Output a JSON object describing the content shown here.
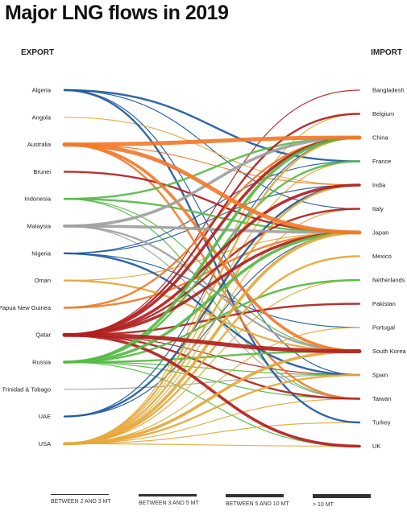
{
  "title": "Major LNG flows in 2019",
  "export_label": "EXPORT",
  "import_label": "IMPORT",
  "colors": {
    "orange": "#f27a2a",
    "blue": "#1f5aa0",
    "grey": "#a0a0a0",
    "green": "#55bb44",
    "red": "#b21f1f",
    "gold": "#e5a83a"
  },
  "exporters": [
    {
      "name": "Algeria",
      "color": "#1f5aa0"
    },
    {
      "name": "Angola",
      "color": "#e5a83a"
    },
    {
      "name": "Australia",
      "color": "#f27a2a"
    },
    {
      "name": "Brunei",
      "color": "#b21f1f"
    },
    {
      "name": "Indonesia",
      "color": "#55bb44"
    },
    {
      "name": "Malaysia",
      "color": "#a0a0a0"
    },
    {
      "name": "Nigeria",
      "color": "#1f5aa0"
    },
    {
      "name": "Oman",
      "color": "#e5a83a"
    },
    {
      "name": "Papua New Guinea",
      "color": "#f27a2a"
    },
    {
      "name": "Qatar",
      "color": "#b21f1f"
    },
    {
      "name": "Russia",
      "color": "#55bb44"
    },
    {
      "name": "Trinidad & Tobago",
      "color": "#a0a0a0"
    },
    {
      "name": "UAE",
      "color": "#1f5aa0"
    },
    {
      "name": "USA",
      "color": "#e5a83a"
    }
  ],
  "importers": [
    "Bangladesh",
    "Belgium",
    "China",
    "France",
    "India",
    "Italy",
    "Japan",
    "Mexico",
    "Netherlands",
    "Pakistan",
    "Portugal",
    "South Korea",
    "Spain",
    "Taiwan",
    "Turkey",
    "UK"
  ],
  "flows": [
    {
      "from": "Algeria",
      "to": "France",
      "band": 2
    },
    {
      "from": "Algeria",
      "to": "Italy",
      "band": 1
    },
    {
      "from": "Algeria",
      "to": "Turkey",
      "band": 2
    },
    {
      "from": "Algeria",
      "to": "Spain",
      "band": 1
    },
    {
      "from": "Angola",
      "to": "India",
      "band": 1
    },
    {
      "from": "Australia",
      "to": "China",
      "band": 4
    },
    {
      "from": "Australia",
      "to": "Japan",
      "band": 4
    },
    {
      "from": "Australia",
      "to": "South Korea",
      "band": 3
    },
    {
      "from": "Australia",
      "to": "Taiwan",
      "band": 2
    },
    {
      "from": "Australia",
      "to": "India",
      "band": 1
    },
    {
      "from": "Brunei",
      "to": "Japan",
      "band": 2
    },
    {
      "from": "Indonesia",
      "to": "China",
      "band": 2
    },
    {
      "from": "Indonesia",
      "to": "Japan",
      "band": 2
    },
    {
      "from": "Indonesia",
      "to": "South Korea",
      "band": 1
    },
    {
      "from": "Indonesia",
      "to": "Taiwan",
      "band": 1
    },
    {
      "from": "Malaysia",
      "to": "China",
      "band": 3
    },
    {
      "from": "Malaysia",
      "to": "Japan",
      "band": 3
    },
    {
      "from": "Malaysia",
      "to": "South Korea",
      "band": 2
    },
    {
      "from": "Malaysia",
      "to": "Taiwan",
      "band": 1
    },
    {
      "from": "Nigeria",
      "to": "India",
      "band": 1
    },
    {
      "from": "Nigeria",
      "to": "Spain",
      "band": 2
    },
    {
      "from": "Nigeria",
      "to": "France",
      "band": 1
    },
    {
      "from": "Nigeria",
      "to": "Portugal",
      "band": 1
    },
    {
      "from": "Oman",
      "to": "South Korea",
      "band": 2
    },
    {
      "from": "Oman",
      "to": "Japan",
      "band": 1
    },
    {
      "from": "Papua New Guinea",
      "to": "Japan",
      "band": 2
    },
    {
      "from": "Papua New Guinea",
      "to": "China",
      "band": 2
    },
    {
      "from": "Qatar",
      "to": "Bangladesh",
      "band": 1
    },
    {
      "from": "Qatar",
      "to": "Belgium",
      "band": 2
    },
    {
      "from": "Qatar",
      "to": "China",
      "band": 3
    },
    {
      "from": "Qatar",
      "to": "India",
      "band": 3
    },
    {
      "from": "Qatar",
      "to": "Italy",
      "band": 2
    },
    {
      "from": "Qatar",
      "to": "Japan",
      "band": 3
    },
    {
      "from": "Qatar",
      "to": "Pakistan",
      "band": 2
    },
    {
      "from": "Qatar",
      "to": "South Korea",
      "band": 4
    },
    {
      "from": "Qatar",
      "to": "Taiwan",
      "band": 2
    },
    {
      "from": "Qatar",
      "to": "UK",
      "band": 3
    },
    {
      "from": "Qatar",
      "to": "Spain",
      "band": 1
    },
    {
      "from": "Russia",
      "to": "China",
      "band": 3
    },
    {
      "from": "Russia",
      "to": "Japan",
      "band": 3
    },
    {
      "from": "Russia",
      "to": "Netherlands",
      "band": 2
    },
    {
      "from": "Russia",
      "to": "France",
      "band": 2
    },
    {
      "from": "Russia",
      "to": "South Korea",
      "band": 2
    },
    {
      "from": "Russia",
      "to": "Spain",
      "band": 1
    },
    {
      "from": "Russia",
      "to": "UK",
      "band": 1
    },
    {
      "from": "Russia",
      "to": "Taiwan",
      "band": 1
    },
    {
      "from": "Trinidad & Tobago",
      "to": "Spain",
      "band": 1
    },
    {
      "from": "UAE",
      "to": "India",
      "band": 2
    },
    {
      "from": "UAE",
      "to": "Japan",
      "band": 1
    },
    {
      "from": "UAE",
      "to": "China",
      "band": 1
    },
    {
      "from": "USA",
      "to": "Mexico",
      "band": 2
    },
    {
      "from": "USA",
      "to": "South Korea",
      "band": 3
    },
    {
      "from": "USA",
      "to": "Japan",
      "band": 3
    },
    {
      "from": "USA",
      "to": "China",
      "band": 2
    },
    {
      "from": "USA",
      "to": "Spain",
      "band": 2
    },
    {
      "from": "USA",
      "to": "UK",
      "band": 1
    },
    {
      "from": "USA",
      "to": "India",
      "band": 2
    },
    {
      "from": "USA",
      "to": "France",
      "band": 1
    },
    {
      "from": "USA",
      "to": "Portugal",
      "band": 1
    },
    {
      "from": "USA",
      "to": "Taiwan",
      "band": 1
    },
    {
      "from": "USA",
      "to": "Turkey",
      "band": 1
    },
    {
      "from": "USA",
      "to": "Italy",
      "band": 1
    },
    {
      "from": "USA",
      "to": "Netherlands",
      "band": 1
    },
    {
      "from": "USA",
      "to": "Belgium",
      "band": 1
    }
  ],
  "legend": [
    {
      "label": "BETWEEN 2 AND 3 MT"
    },
    {
      "label": "BETWEEN 3 AND 5 MT"
    },
    {
      "label": "BETWEEN 5 AND 10 MT"
    },
    {
      "label": "> 10 MT"
    }
  ]
}
